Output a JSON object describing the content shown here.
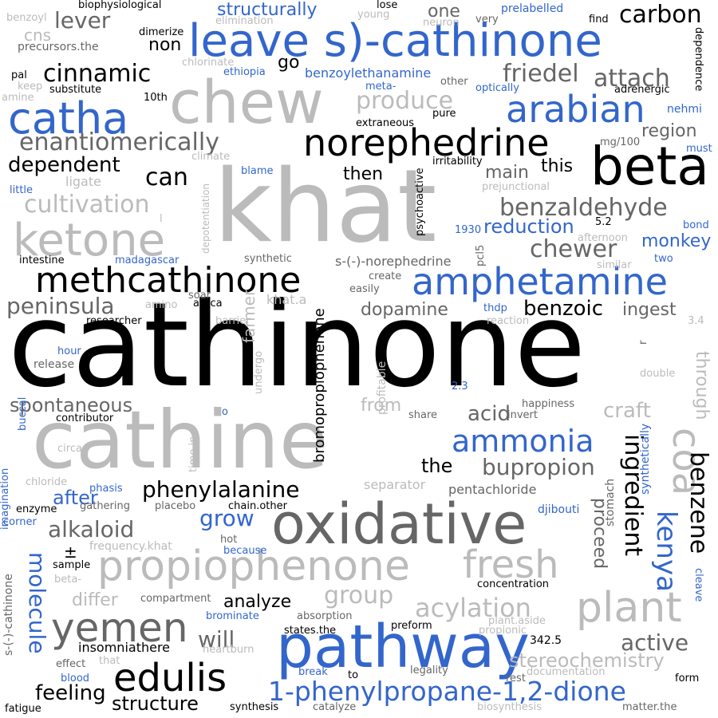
{
  "palette": {
    "black": "#000000",
    "dark_gray": "#666666",
    "light_gray": "#bbbbbb",
    "blue": "#3366cc"
  },
  "words": [
    {
      "text": "cathinone",
      "color": "black"
    },
    {
      "text": "khat",
      "color": "light_gray"
    },
    {
      "text": "cathine",
      "color": "light_gray"
    },
    {
      "text": "oxidative",
      "color": "dark_gray"
    },
    {
      "text": "chew",
      "color": "light_gray"
    },
    {
      "text": "leave s)-cathinone",
      "color": "blue"
    },
    {
      "text": "beta",
      "color": "black"
    },
    {
      "text": "pathway",
      "color": "blue"
    },
    {
      "text": "propiophenone",
      "color": "light_gray"
    },
    {
      "text": "ketone",
      "color": "light_gray"
    },
    {
      "text": "methcathinone",
      "color": "black"
    },
    {
      "text": "amphetamine",
      "color": "blue"
    },
    {
      "text": "norephedrine",
      "color": "black"
    },
    {
      "text": "catha",
      "color": "blue"
    },
    {
      "text": "arabian",
      "color": "blue"
    },
    {
      "text": "yemen",
      "color": "dark_gray"
    },
    {
      "text": "edulis",
      "color": "black"
    },
    {
      "text": "plant",
      "color": "light_gray"
    },
    {
      "text": "fresh",
      "color": "light_gray"
    },
    {
      "text": "coa",
      "color": "light_gray"
    },
    {
      "text": "1-phenylpropane-1,2-dione",
      "color": "blue"
    },
    {
      "text": "ammonia",
      "color": "blue"
    },
    {
      "text": "enantiomerically",
      "color": "dark_gray"
    },
    {
      "text": "cultivation",
      "color": "light_gray"
    },
    {
      "text": "friedel",
      "color": "dark_gray"
    },
    {
      "text": "cinnamic",
      "color": "black"
    },
    {
      "text": "carbon",
      "color": "black"
    },
    {
      "text": "attach",
      "color": "dark_gray"
    },
    {
      "text": "produce",
      "color": "light_gray"
    },
    {
      "text": "benzaldehyde",
      "color": "dark_gray"
    },
    {
      "text": "peninsula",
      "color": "dark_gray"
    },
    {
      "text": "dependent",
      "color": "black"
    },
    {
      "text": "chewer",
      "color": "dark_gray"
    },
    {
      "text": "reduction",
      "color": "blue"
    },
    {
      "text": "benzoic",
      "color": "black"
    },
    {
      "text": "alkaloid",
      "color": "dark_gray"
    },
    {
      "text": "phenylalanine",
      "color": "black"
    },
    {
      "text": "bupropion",
      "color": "dark_gray"
    },
    {
      "text": "acylation",
      "color": "light_gray"
    },
    {
      "text": "group",
      "color": "light_gray"
    },
    {
      "text": "kenya",
      "color": "blue"
    },
    {
      "text": "benzene",
      "color": "black"
    },
    {
      "text": "ingredient",
      "color": "black"
    },
    {
      "text": "molecule",
      "color": "blue"
    },
    {
      "text": "structurally",
      "color": "blue"
    },
    {
      "text": "lever",
      "color": "dark_gray"
    },
    {
      "text": "region",
      "color": "dark_gray"
    },
    {
      "text": "monkey",
      "color": "blue"
    },
    {
      "text": "ingest",
      "color": "dark_gray"
    },
    {
      "text": "dopamine",
      "color": "dark_gray"
    },
    {
      "text": "craft",
      "color": "light_gray"
    },
    {
      "text": "acid",
      "color": "dark_gray"
    },
    {
      "text": "from",
      "color": "light_gray"
    },
    {
      "text": "spontaneous",
      "color": "dark_gray"
    },
    {
      "text": "grow",
      "color": "blue"
    },
    {
      "text": "after",
      "color": "blue"
    },
    {
      "text": "the",
      "color": "black"
    },
    {
      "text": "active",
      "color": "dark_gray"
    },
    {
      "text": "stereochemistry",
      "color": "light_gray"
    },
    {
      "text": "structure",
      "color": "black"
    },
    {
      "text": "feeling",
      "color": "black"
    },
    {
      "text": "will",
      "color": "dark_gray"
    },
    {
      "text": "analyze",
      "color": "black"
    },
    {
      "text": "differ",
      "color": "light_gray"
    },
    {
      "text": "proceed",
      "color": "dark_gray"
    },
    {
      "text": "through",
      "color": "light_gray"
    },
    {
      "text": "can",
      "color": "black"
    },
    {
      "text": "main",
      "color": "dark_gray"
    },
    {
      "text": "this",
      "color": "black"
    },
    {
      "text": "then",
      "color": "black"
    },
    {
      "text": "non",
      "color": "black"
    },
    {
      "text": "one",
      "color": "dark_gray"
    },
    {
      "text": "go",
      "color": "black"
    },
    {
      "text": "cns",
      "color": "light_gray"
    },
    {
      "text": "ligate",
      "color": "light_gray"
    },
    {
      "text": "farmer",
      "color": "light_gray"
    },
    {
      "text": "bromopropiophenone",
      "color": "black"
    },
    {
      "text": "profitable",
      "color": "light_gray"
    },
    {
      "text": "342.5",
      "color": "black"
    },
    {
      "text": "pentachloride",
      "color": "dark_gray"
    },
    {
      "text": "separator",
      "color": "light_gray"
    },
    {
      "text": "djibouti",
      "color": "blue"
    },
    {
      "text": "stomach",
      "color": "dark_gray"
    },
    {
      "text": "synthetically",
      "color": "blue"
    },
    {
      "text": "s-(-)-norephedrine",
      "color": "dark_gray"
    },
    {
      "text": "benzoylethanamine",
      "color": "blue"
    },
    {
      "text": "ethiopia",
      "color": "blue"
    },
    {
      "text": "madagascar",
      "color": "blue"
    },
    {
      "text": "khat.a",
      "color": "light_gray"
    },
    {
      "text": "africa",
      "color": "black"
    },
    {
      "text": "soar",
      "color": "dark_gray"
    },
    {
      "text": "researcher",
      "color": "black"
    },
    {
      "text": "barrier",
      "color": "light_gray"
    },
    {
      "text": "release",
      "color": "dark_gray"
    },
    {
      "text": "hour",
      "color": "blue"
    },
    {
      "text": "contributor",
      "color": "black"
    },
    {
      "text": "buccal",
      "color": "blue"
    },
    {
      "text": "circa",
      "color": "light_gray"
    },
    {
      "text": "chloride",
      "color": "light_gray"
    },
    {
      "text": "enzyme",
      "color": "black"
    },
    {
      "text": "phasis",
      "color": "blue"
    },
    {
      "text": "gathering",
      "color": "dark_gray"
    },
    {
      "text": "placebo",
      "color": "dark_gray"
    },
    {
      "text": "chain.other",
      "color": "black"
    },
    {
      "text": "hot",
      "color": "dark_gray"
    },
    {
      "text": "because",
      "color": "blue"
    },
    {
      "text": "frequency.khat",
      "color": "light_gray"
    },
    {
      "text": "sample",
      "color": "black"
    },
    {
      "text": "beta-",
      "color": "light_gray"
    },
    {
      "text": "compartment",
      "color": "dark_gray"
    },
    {
      "text": "brominate",
      "color": "blue"
    },
    {
      "text": "absorption",
      "color": "dark_gray"
    },
    {
      "text": "insomniathere",
      "color": "black"
    },
    {
      "text": "heartburn",
      "color": "light_gray"
    },
    {
      "text": "preform",
      "color": "black"
    },
    {
      "text": "states.the",
      "color": "black"
    },
    {
      "text": "concentration",
      "color": "black"
    },
    {
      "text": "plant.aside",
      "color": "light_gray"
    },
    {
      "text": "propionic",
      "color": "light_gray"
    },
    {
      "text": "documentation",
      "color": "light_gray"
    },
    {
      "text": "legality",
      "color": "dark_gray"
    },
    {
      "text": "rest",
      "color": "dark_gray"
    },
    {
      "text": "form",
      "color": "black"
    },
    {
      "text": "matter.the",
      "color": "dark_gray"
    },
    {
      "text": "biosynthesis",
      "color": "light_gray"
    },
    {
      "text": "catalyze",
      "color": "dark_gray"
    },
    {
      "text": "synthesis",
      "color": "black"
    },
    {
      "text": "fatigue",
      "color": "black"
    },
    {
      "text": "blood",
      "color": "blue"
    },
    {
      "text": "effect",
      "color": "dark_gray"
    },
    {
      "text": "that",
      "color": "light_gray"
    },
    {
      "text": "break",
      "color": "blue"
    },
    {
      "text": "to",
      "color": "black"
    },
    {
      "text": "biophysiological",
      "color": "black"
    },
    {
      "text": "benzoyl",
      "color": "light_gray"
    },
    {
      "text": "dimerize",
      "color": "black"
    },
    {
      "text": "elimination",
      "color": "light_gray"
    },
    {
      "text": "young",
      "color": "light_gray"
    },
    {
      "text": "lose",
      "color": "black"
    },
    {
      "text": "neuron",
      "color": "light_gray"
    },
    {
      "text": "very",
      "color": "dark_gray"
    },
    {
      "text": "prelabelled",
      "color": "blue"
    },
    {
      "text": "find",
      "color": "black"
    },
    {
      "text": "dependence",
      "color": "black"
    },
    {
      "text": "precursors.the",
      "color": "dark_gray"
    },
    {
      "text": "chlorinate",
      "color": "light_gray"
    },
    {
      "text": "pal",
      "color": "black"
    },
    {
      "text": "keep",
      "color": "light_gray"
    },
    {
      "text": "substitute",
      "color": "black"
    },
    {
      "text": "amine",
      "color": "light_gray"
    },
    {
      "text": "10th",
      "color": "black"
    },
    {
      "text": "meta-",
      "color": "blue"
    },
    {
      "text": "other",
      "color": "dark_gray"
    },
    {
      "text": "optically",
      "color": "blue"
    },
    {
      "text": "adrenergic",
      "color": "black"
    },
    {
      "text": "nehmi",
      "color": "blue"
    },
    {
      "text": "extraneous",
      "color": "black"
    },
    {
      "text": "pure",
      "color": "black"
    },
    {
      "text": "mg/100",
      "color": "dark_gray"
    },
    {
      "text": "must",
      "color": "blue"
    },
    {
      "text": "climate",
      "color": "light_gray"
    },
    {
      "text": "blame",
      "color": "blue"
    },
    {
      "text": "psychoactive",
      "color": "black"
    },
    {
      "text": "irritability",
      "color": "black"
    },
    {
      "text": "little",
      "color": "blue"
    },
    {
      "text": "prejunctional",
      "color": "light_gray"
    },
    {
      "text": "l",
      "color": "light_gray"
    },
    {
      "text": "depotentiation",
      "color": "light_gray"
    },
    {
      "text": "1930",
      "color": "blue"
    },
    {
      "text": "pcl5",
      "color": "dark_gray"
    },
    {
      "text": "5.2",
      "color": "black"
    },
    {
      "text": "bond",
      "color": "blue"
    },
    {
      "text": "afternoon",
      "color": "light_gray"
    },
    {
      "text": "intestine",
      "color": "black"
    },
    {
      "text": "synthetic",
      "color": "dark_gray"
    },
    {
      "text": "similar",
      "color": "light_gray"
    },
    {
      "text": "two",
      "color": "blue"
    },
    {
      "text": "create",
      "color": "dark_gray"
    },
    {
      "text": "easily",
      "color": "dark_gray"
    },
    {
      "text": "amino",
      "color": "light_gray"
    },
    {
      "text": "thdp",
      "color": "blue"
    },
    {
      "text": "reaction",
      "color": "light_gray"
    },
    {
      "text": "3.4",
      "color": "light_gray"
    },
    {
      "text": "r",
      "color": "dark_gray"
    },
    {
      "text": "undergo",
      "color": "light_gray"
    },
    {
      "text": "2.3",
      "color": "blue"
    },
    {
      "text": "double",
      "color": "light_gray"
    },
    {
      "text": "o",
      "color": "blue"
    },
    {
      "text": "happiness",
      "color": "dark_gray"
    },
    {
      "text": "share",
      "color": "dark_gray"
    },
    {
      "text": "invert",
      "color": "dark_gray"
    },
    {
      "text": "time.in",
      "color": "light_gray"
    },
    {
      "text": "imagination",
      "color": "blue"
    },
    {
      "text": "corner",
      "color": "blue"
    },
    {
      "text": "±",
      "color": "black"
    },
    {
      "text": "s-(-)-cathinone",
      "color": "dark_gray"
    },
    {
      "text": "cleave",
      "color": "blue"
    }
  ]
}
